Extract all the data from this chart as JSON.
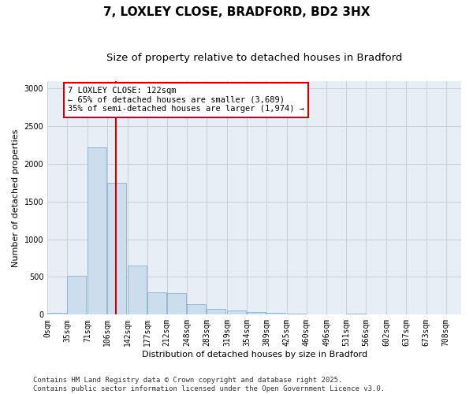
{
  "title": "7, LOXLEY CLOSE, BRADFORD, BD2 3HX",
  "subtitle": "Size of property relative to detached houses in Bradford",
  "xlabel": "Distribution of detached houses by size in Bradford",
  "ylabel": "Number of detached properties",
  "bins": [
    0,
    35,
    71,
    106,
    142,
    177,
    212,
    248,
    283,
    319,
    354,
    389,
    425,
    460,
    496,
    531,
    566,
    602,
    637,
    673,
    708
  ],
  "bar_labels": [
    "0sqm",
    "35sqm",
    "71sqm",
    "106sqm",
    "142sqm",
    "177sqm",
    "212sqm",
    "248sqm",
    "283sqm",
    "319sqm",
    "354sqm",
    "389sqm",
    "425sqm",
    "460sqm",
    "496sqm",
    "531sqm",
    "566sqm",
    "602sqm",
    "637sqm",
    "673sqm",
    "708sqm"
  ],
  "values": [
    20,
    520,
    2220,
    1750,
    650,
    295,
    285,
    140,
    75,
    55,
    35,
    20,
    15,
    0,
    0,
    18,
    0,
    0,
    0,
    0,
    0
  ],
  "bar_color": "#ccdded",
  "bar_edge_color": "#7aaac4",
  "vline_x": 122,
  "vline_color": "#cc0000",
  "annotation_title": "7 LOXLEY CLOSE: 122sqm",
  "annotation_line2": "← 65% of detached houses are smaller (3,689)",
  "annotation_line3": "35% of semi-detached houses are larger (1,974) →",
  "annotation_box_color": "#cc0000",
  "ylim": [
    0,
    3100
  ],
  "yticks": [
    0,
    500,
    1000,
    1500,
    2000,
    2500,
    3000
  ],
  "footer_line1": "Contains HM Land Registry data © Crown copyright and database right 2025.",
  "footer_line2": "Contains public sector information licensed under the Open Government Licence v3.0.",
  "bg_color": "#ffffff",
  "plot_bg_color": "#e8eef5",
  "grid_color": "#c0ccd8",
  "title_fontsize": 11,
  "subtitle_fontsize": 9.5,
  "axis_label_fontsize": 8,
  "tick_fontsize": 7,
  "annotation_fontsize": 7.5,
  "footer_fontsize": 6.5
}
